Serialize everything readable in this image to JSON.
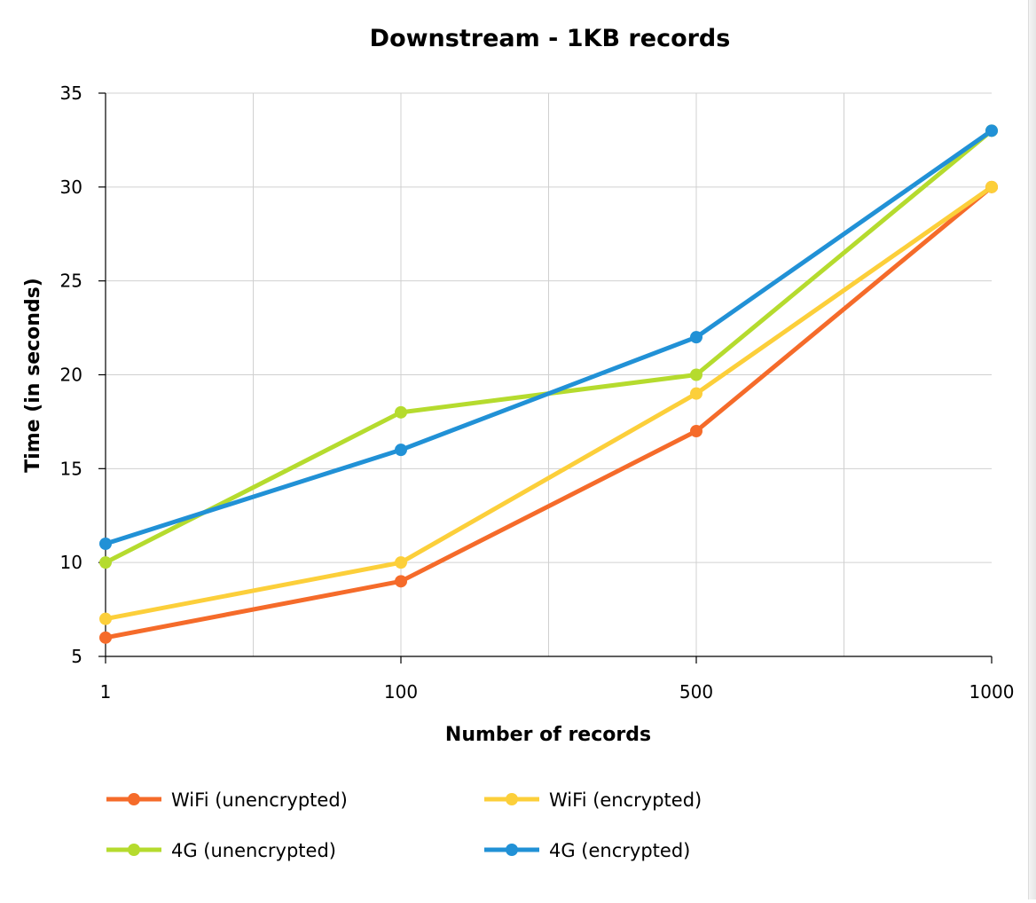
{
  "chart_data": {
    "type": "line",
    "title": "Downstream - 1KB records",
    "xlabel": "Number of records",
    "ylabel": "Time (in seconds)",
    "categories": [
      "1",
      "100",
      "500",
      "1000"
    ],
    "ylim": [
      5,
      35
    ],
    "yticks": [
      5,
      10,
      15,
      20,
      25,
      30,
      35
    ],
    "grid": true,
    "legend_position": "bottom",
    "series": [
      {
        "name": "WiFi (unencrypted)",
        "color": "#f56b2a",
        "values": [
          6,
          9,
          17,
          30
        ]
      },
      {
        "name": "WiFi (encrypted)",
        "color": "#fccf3a",
        "values": [
          7,
          10,
          19,
          30
        ]
      },
      {
        "name": "4G (unencrypted)",
        "color": "#b5db2e",
        "values": [
          10,
          18,
          20,
          33
        ]
      },
      {
        "name": "4G (encrypted)",
        "color": "#2191d6",
        "values": [
          11,
          16,
          22,
          33
        ]
      }
    ]
  }
}
